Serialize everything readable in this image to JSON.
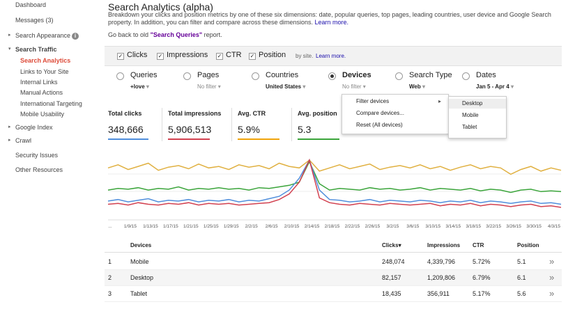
{
  "sidebar": {
    "top": [
      "Dashboard",
      "Messages (3)",
      "Search Appearance",
      "Search Traffic"
    ],
    "search_traffic": [
      "Search Analytics",
      "Links to Your Site",
      "Internal Links",
      "Manual Actions",
      "International Targeting",
      "Mobile Usability"
    ],
    "bottom": [
      "Google Index",
      "Crawl",
      "Security Issues",
      "Other Resources"
    ]
  },
  "header": {
    "title": "Search Analytics (alpha)",
    "description": "Breakdown your clicks and position metrics by one of these six dimensions: date, popular queries, top pages, leading countries, user device and Google Search property. In addition, you can filter and compare across these dimensions.",
    "learn_more": "Learn more.",
    "back_prefix": "Go back to old",
    "back_link": "\"Search Queries\"",
    "back_suffix": "report."
  },
  "metrics": {
    "items": [
      "Clicks",
      "Impressions",
      "CTR",
      "Position"
    ],
    "note": "by site.",
    "learn_more": "Learn more."
  },
  "dimensions": [
    {
      "name": "Queries",
      "filter": "+love",
      "active": true
    },
    {
      "name": "Pages",
      "filter": "No filter",
      "active": false
    },
    {
      "name": "Countries",
      "filter": "United States",
      "active": true
    },
    {
      "name": "Devices",
      "filter": "No filter",
      "active": false,
      "selected": true
    },
    {
      "name": "Search Type",
      "filter": "Web",
      "active": true
    },
    {
      "name": "Dates",
      "filter": "Jan 5 - Apr 4",
      "active": true
    }
  ],
  "menu": {
    "items": [
      "Filter devices",
      "Compare devices...",
      "Reset (All devices)"
    ],
    "submenu": [
      "Desktop",
      "Mobile",
      "Tablet"
    ]
  },
  "totals": [
    {
      "label": "Total clicks",
      "value": "348,666",
      "color": "#4f8edc"
    },
    {
      "label": "Total impressions",
      "value": "5,906,513",
      "color": "#d2404f"
    },
    {
      "label": "Avg. CTR",
      "value": "5.9%",
      "color": "#f0a30a"
    },
    {
      "label": "Avg. position",
      "value": "5.3",
      "color": "#3aa43a"
    }
  ],
  "chart": {
    "type": "line",
    "x_labels": [
      "...",
      "1/9/15",
      "1/13/15",
      "1/17/15",
      "1/21/15",
      "1/25/15",
      "1/29/15",
      "2/2/15",
      "2/6/15",
      "2/10/15",
      "2/14/15",
      "2/18/15",
      "2/22/15",
      "2/26/15",
      "3/2/15",
      "3/6/15",
      "3/10/15",
      "3/14/15",
      "3/18/15",
      "3/22/15",
      "3/26/15",
      "3/30/15",
      "4/3/15"
    ],
    "series": [
      {
        "color": "#e0b040",
        "values": [
          58,
          62,
          56,
          60,
          64,
          55,
          59,
          61,
          57,
          63,
          58,
          60,
          56,
          62,
          59,
          61,
          57,
          64,
          60,
          58,
          68,
          54,
          58,
          62,
          57,
          60,
          63,
          56,
          59,
          61,
          58,
          62,
          57,
          60,
          55,
          59,
          62,
          57,
          60,
          58,
          50,
          56,
          60,
          54,
          58,
          55
        ]
      },
      {
        "color": "#3aa43a",
        "values": [
          30,
          32,
          31,
          33,
          30,
          32,
          31,
          34,
          30,
          32,
          31,
          33,
          31,
          32,
          30,
          33,
          32,
          34,
          36,
          40,
          66,
          38,
          30,
          32,
          31,
          30,
          33,
          31,
          32,
          30,
          31,
          33,
          30,
          32,
          31,
          30,
          32,
          29,
          31,
          30,
          27,
          30,
          31,
          28,
          29,
          28
        ]
      },
      {
        "color": "#4f8edc",
        "values": [
          16,
          18,
          15,
          17,
          19,
          15,
          17,
          16,
          18,
          15,
          17,
          16,
          18,
          15,
          17,
          16,
          19,
          22,
          30,
          45,
          68,
          30,
          18,
          17,
          15,
          16,
          18,
          15,
          17,
          16,
          15,
          17,
          16,
          14,
          16,
          15,
          17,
          14,
          16,
          15,
          13,
          15,
          16,
          13,
          14,
          12
        ]
      },
      {
        "color": "#d2404f",
        "values": [
          12,
          13,
          11,
          14,
          12,
          11,
          13,
          12,
          14,
          11,
          13,
          12,
          13,
          11,
          12,
          13,
          14,
          18,
          25,
          40,
          68,
          20,
          14,
          12,
          11,
          13,
          12,
          11,
          13,
          12,
          11,
          12,
          13,
          10,
          12,
          11,
          13,
          10,
          12,
          11,
          9,
          11,
          12,
          9,
          10,
          8
        ]
      }
    ]
  },
  "table": {
    "headers": [
      "Devices",
      "Clicks▾",
      "Impressions",
      "CTR",
      "Position"
    ],
    "rows": [
      [
        "1",
        "Mobile",
        "248,074",
        "4,339,796",
        "5.72%",
        "5.1"
      ],
      [
        "2",
        "Desktop",
        "82,157",
        "1,209,806",
        "6.79%",
        "6.1"
      ],
      [
        "3",
        "Tablet",
        "18,435",
        "356,911",
        "5.17%",
        "5.6"
      ]
    ]
  }
}
